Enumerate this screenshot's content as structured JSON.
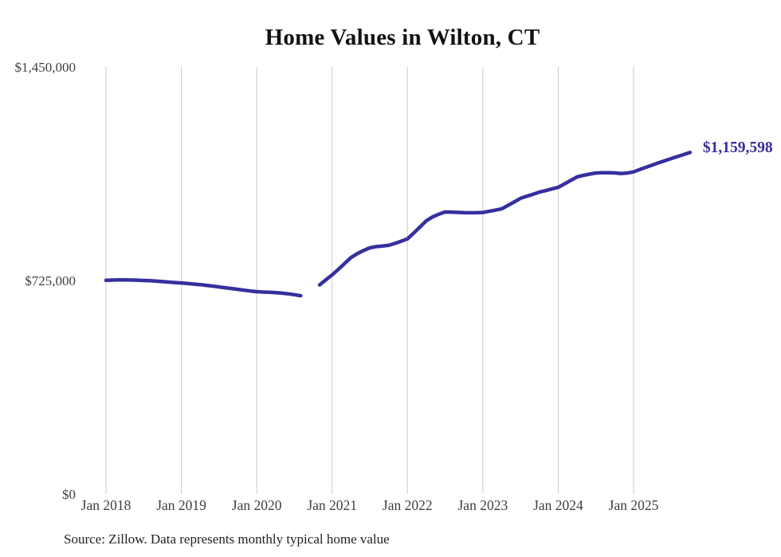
{
  "colors": {
    "line": "#352f9e",
    "grid": "#cbcbcb",
    "axis_text": "#3f3f3f",
    "title_text": "#121212",
    "source_text": "#1f1f1f",
    "background": "#ffffff"
  },
  "chart_data": {
    "type": "line",
    "title": "Home Values in Wilton, CT",
    "source_note": "Source: Zillow. Data represents monthly typical home value",
    "last_point_label": "$1,159,598",
    "legend": "none",
    "grid": "vertical-only",
    "ylim": [
      0,
      1450000
    ],
    "y_tick_labels": [
      {
        "label": "$0",
        "value": 0
      },
      {
        "label": "$725,000",
        "value": 725000
      },
      {
        "label": "$1,450,000",
        "value": 1450000
      }
    ],
    "x_tick_labels": [
      "Jan 2018",
      "Jan 2019",
      "Jan 2020",
      "Jan 2021",
      "Jan 2022",
      "Jan 2023",
      "Jan 2024",
      "Jan 2025"
    ],
    "series": [
      {
        "name": "Monthly typical home value",
        "unit": "USD",
        "data_gap": [
          "2020-09",
          "2020-10"
        ],
        "segments": [
          {
            "start_month": "2018-01",
            "values": [
              725800,
              726400,
              726900,
              727000,
              726600,
              726000,
              725100,
              724100,
              722900,
              721200,
              719600,
              718100,
              716700,
              714900,
              712900,
              710800,
              708500,
              706000,
              703200,
              700300,
              697600,
              694900,
              692100,
              689400,
              687100,
              685900,
              684900,
              683800,
              682100,
              679900,
              676800,
              673200
            ]
          },
          {
            "start_month": "2020-11",
            "values": [
              709900,
              726800,
              743900,
              762900,
              782800,
              802900,
              815900,
              826800,
              835800,
              839900,
              842100,
              844200,
              850900,
              858300,
              866100,
              886200,
              906800,
              927700,
              940900,
              950200,
              957700,
              957100,
              956200,
              955300,
              955000,
              955300,
              955900,
              959800,
              963900,
              968100,
              979900,
              991800,
              1003900,
              1010900,
              1017800,
              1024900,
              1030100,
              1035800,
              1041200,
              1052900,
              1064900,
              1076800,
              1081900,
              1086100,
              1089800,
              1090900,
              1091100,
              1090300,
              1088200,
              1089900,
              1093800,
              1101900,
              1109800,
              1117100,
              1124800,
              1131900,
              1138800,
              1145900,
              1152800,
              1159598
            ]
          }
        ]
      }
    ]
  }
}
